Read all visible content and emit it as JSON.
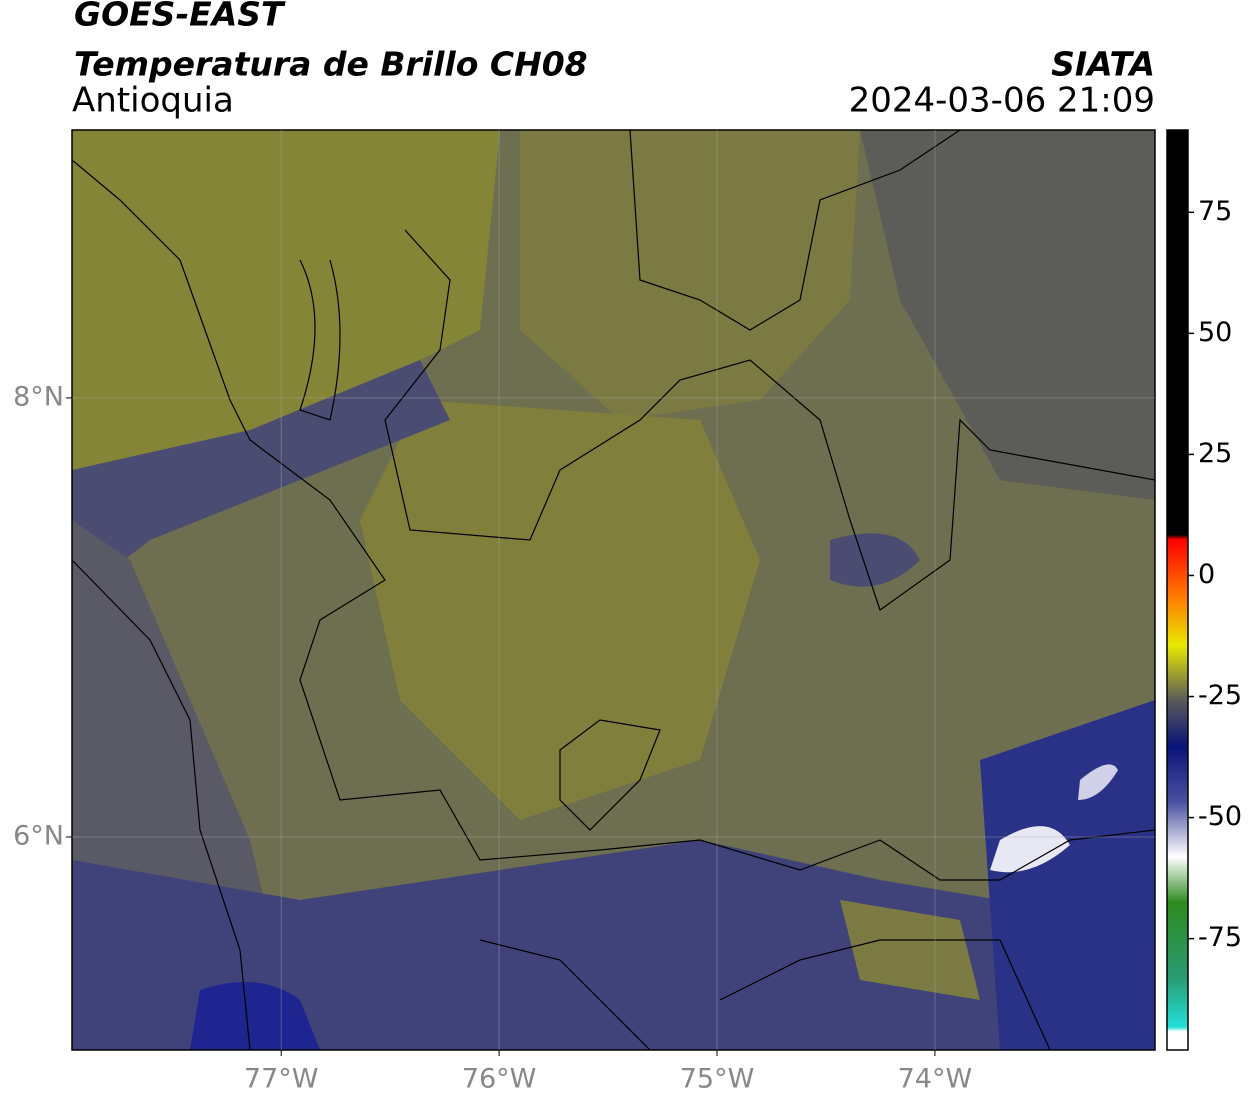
{
  "header": {
    "title": "GOES-EAST",
    "subtitle": "Temperatura de Brillo CH08",
    "region": "Antioquia",
    "source": "SIATA",
    "datetime": "2024-03-06 21:09"
  },
  "map": {
    "xlim": [
      -77.96,
      -72.99
    ],
    "ylim": [
      5.03,
      9.22
    ],
    "xticks": [
      {
        "value": -77,
        "label": "77°W"
      },
      {
        "value": -76,
        "label": "76°W"
      },
      {
        "value": -75,
        "label": "75°W"
      },
      {
        "value": -74,
        "label": "74°W"
      }
    ],
    "yticks": [
      {
        "value": 8,
        "label": "8°N"
      },
      {
        "value": 6,
        "label": "6°N"
      }
    ],
    "grid": true
  },
  "colorbar": {
    "lim": [
      -98,
      92
    ],
    "ticks": [
      75,
      50,
      25,
      0,
      -25,
      -50,
      -75
    ]
  }
}
